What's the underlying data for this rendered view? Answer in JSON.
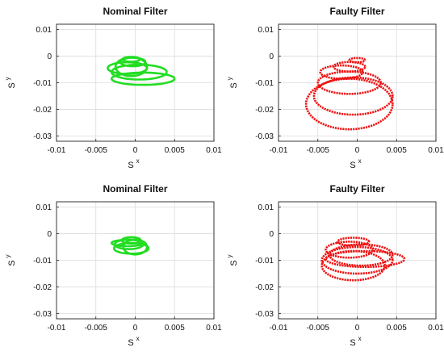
{
  "chart_data": [
    {
      "type": "line",
      "title": "Nominal Filter",
      "xlabel": "S",
      "xlabel_sup": "x",
      "ylabel": "S",
      "ylabel_sup": "y",
      "xlim": [
        -0.01,
        0.01
      ],
      "ylim": [
        -0.032,
        0.012
      ],
      "xticks": [
        -0.01,
        -0.005,
        0,
        0.005,
        0.01
      ],
      "xtick_labels": [
        "-0.01",
        "-0.005",
        "0",
        "0.005",
        "0.01"
      ],
      "yticks": [
        0.01,
        0,
        -0.01,
        -0.02,
        -0.03
      ],
      "ytick_labels": [
        "0.01",
        "0",
        "-0.01",
        "-0.02",
        "-0.03"
      ],
      "grid": true,
      "color": "#22dd22",
      "series": [
        {
          "loops": [
            {
              "cx": -0.0005,
              "cy": -0.0012,
              "rx": 0.0011,
              "ry": 0.0009
            },
            {
              "cx": -0.0003,
              "cy": -0.0022,
              "rx": 0.0016,
              "ry": 0.0016
            },
            {
              "cx": -0.001,
              "cy": -0.0045,
              "rx": 0.0025,
              "ry": 0.0022
            },
            {
              "cx": 0.0005,
              "cy": -0.006,
              "rx": 0.0035,
              "ry": 0.0028
            },
            {
              "cx": 0.001,
              "cy": -0.0085,
              "rx": 0.004,
              "ry": 0.0023
            },
            {
              "cx": -0.0005,
              "cy": -0.004,
              "rx": 0.002,
              "ry": 0.0035
            }
          ]
        }
      ]
    },
    {
      "type": "line",
      "title": "Faulty Filter",
      "xlabel": "S",
      "xlabel_sup": "x",
      "ylabel": "S",
      "ylabel_sup": "y",
      "xlim": [
        -0.01,
        0.01
      ],
      "ylim": [
        -0.032,
        0.012
      ],
      "xticks": [
        -0.01,
        -0.005,
        0,
        0.005,
        0.01
      ],
      "xtick_labels": [
        "-0.01",
        "-0.005",
        "0",
        "0.005",
        "0.01"
      ],
      "yticks": [
        0.01,
        0,
        -0.01,
        -0.02,
        -0.03
      ],
      "ytick_labels": [
        "0.01",
        "0",
        "-0.01",
        "-0.02",
        "-0.03"
      ],
      "grid": true,
      "color": "#ee1111",
      "series": [
        {
          "loops": [
            {
              "cx": 0.0,
              "cy": -0.0015,
              "rx": 0.001,
              "ry": 0.0008
            },
            {
              "cx": -0.001,
              "cy": -0.004,
              "rx": 0.002,
              "ry": 0.0018
            },
            {
              "cx": -0.002,
              "cy": -0.006,
              "rx": 0.0027,
              "ry": 0.0025
            },
            {
              "cx": -0.001,
              "cy": -0.01,
              "rx": 0.004,
              "ry": 0.0042
            },
            {
              "cx": -0.0005,
              "cy": -0.015,
              "rx": 0.005,
              "ry": 0.007
            },
            {
              "cx": -0.001,
              "cy": -0.018,
              "rx": 0.0055,
              "ry": 0.0095
            }
          ]
        }
      ]
    },
    {
      "type": "line",
      "title": "Nominal Filter",
      "xlabel": "S",
      "xlabel_sup": "x",
      "ylabel": "S",
      "ylabel_sup": "y",
      "xlim": [
        -0.01,
        0.01
      ],
      "ylim": [
        -0.032,
        0.012
      ],
      "xticks": [
        -0.01,
        -0.005,
        0,
        0.005,
        0.01
      ],
      "xtick_labels": [
        "-0.01",
        "-0.005",
        "0",
        "0.005",
        "0.01"
      ],
      "yticks": [
        0.01,
        0,
        -0.01,
        -0.02,
        -0.03
      ],
      "ytick_labels": [
        "0.01",
        "0",
        "-0.01",
        "-0.02",
        "-0.03"
      ],
      "grid": true,
      "color": "#22dd22",
      "series": [
        {
          "loops": [
            {
              "cx": -0.0005,
              "cy": -0.0025,
              "rx": 0.0012,
              "ry": 0.0012
            },
            {
              "cx": -0.0008,
              "cy": -0.004,
              "rx": 0.0018,
              "ry": 0.0018
            },
            {
              "cx": -0.0005,
              "cy": -0.0055,
              "rx": 0.0022,
              "ry": 0.002
            },
            {
              "cx": 0.0,
              "cy": -0.005,
              "rx": 0.0015,
              "ry": 0.0028
            },
            {
              "cx": -0.001,
              "cy": -0.0035,
              "rx": 0.002,
              "ry": 0.0012
            }
          ]
        }
      ]
    },
    {
      "type": "line",
      "title": "Faulty Filter",
      "xlabel": "S",
      "xlabel_sup": "x",
      "ylabel": "S",
      "ylabel_sup": "y",
      "xlim": [
        -0.01,
        0.01
      ],
      "ylim": [
        -0.032,
        0.012
      ],
      "xticks": [
        -0.01,
        -0.005,
        0,
        0.005,
        0.01
      ],
      "xtick_labels": [
        "-0.01",
        "-0.005",
        "0",
        "0.005",
        "0.01"
      ],
      "yticks": [
        0.01,
        0,
        -0.01,
        -0.02,
        -0.03
      ],
      "ytick_labels": [
        "0.01",
        "0",
        "-0.01",
        "-0.02",
        "-0.03"
      ],
      "grid": true,
      "color": "#ee1111",
      "series": [
        {
          "loops": [
            {
              "cx": -0.0005,
              "cy": -0.003,
              "rx": 0.002,
              "ry": 0.0015
            },
            {
              "cx": -0.001,
              "cy": -0.006,
              "rx": 0.003,
              "ry": 0.003
            },
            {
              "cx": 0.0005,
              "cy": -0.008,
              "rx": 0.004,
              "ry": 0.004
            },
            {
              "cx": 0.0,
              "cy": -0.01,
              "rx": 0.0045,
              "ry": 0.005
            },
            {
              "cx": -0.0005,
              "cy": -0.012,
              "rx": 0.004,
              "ry": 0.0055
            },
            {
              "cx": 0.001,
              "cy": -0.0095,
              "rx": 0.005,
              "ry": 0.003
            }
          ]
        }
      ]
    }
  ]
}
